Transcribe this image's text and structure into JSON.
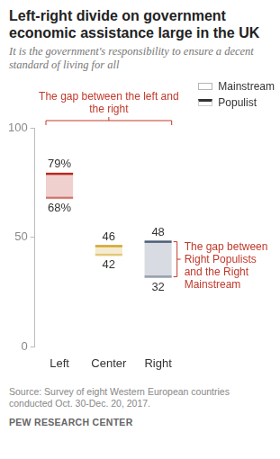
{
  "chart_data": {
    "type": "bar",
    "title": "Left-right divide on government economic assistance large in the UK",
    "subtitle": "It is the government's responsibility to ensure a decent standard of living for all",
    "categories": [
      "Left",
      "Center",
      "Right"
    ],
    "colors": [
      "#b8281e",
      "#d3a52a",
      "#4d5c78"
    ],
    "series": [
      {
        "name": "Mainstream",
        "color": "#b5b5b5",
        "values": [
          68,
          42,
          32
        ],
        "value_labels": [
          "68%",
          "42",
          "32"
        ]
      },
      {
        "name": "Populist",
        "color": "#333333",
        "values": [
          79,
          46,
          48
        ],
        "value_labels": [
          "79%",
          "46",
          "48"
        ]
      }
    ],
    "ylim": [
      0,
      100
    ],
    "yticks": [
      0,
      50,
      100
    ],
    "grid": false,
    "data_labels": true,
    "legend": "top right",
    "annotations": [
      "The gap between the left and the right",
      "The gap between Right Populists and the Right Mainstream"
    ],
    "source": "Source: Survey of eight Western European countries conducted Oct. 30-Dec. 20, 2017.",
    "credit": "PEW RESEARCH CENTER"
  }
}
